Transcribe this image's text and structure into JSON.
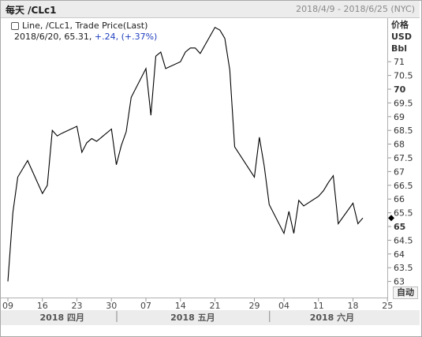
{
  "header": {
    "title": "每天 /CLc1",
    "date_range": "2018/4/9 - 2018/6/25 (NYC)"
  },
  "legend": {
    "line1": "Line, /CLc1, Trade Price(Last)",
    "date_value": "2018/6/20, 65.31, ",
    "change": "+.24, (+.37%)"
  },
  "yaxis": {
    "header": [
      "价格",
      "USD",
      "Bbl"
    ],
    "labels": [
      "71",
      "70.5",
      "70",
      "69.5",
      "69",
      "68.5",
      "68",
      "67.5",
      "67",
      "66.5",
      "66",
      "65.5",
      "65",
      "64.5",
      "64",
      "63.5",
      "63"
    ],
    "bold_labels": [
      "70",
      "65"
    ],
    "auto_button": "自动"
  },
  "xaxis": {
    "tick_labels": [
      "09",
      "16",
      "23",
      "30",
      "07",
      "14",
      "21",
      "29",
      "04",
      "11",
      "18",
      "25"
    ],
    "month_labels": [
      "2018 四月",
      "2018 五月",
      "2018 六月"
    ]
  },
  "chart_data": {
    "type": "line",
    "series": [
      {
        "name": "/CLc1",
        "x": [
          "2018-04-09",
          "2018-04-10",
          "2018-04-11",
          "2018-04-12",
          "2018-04-13",
          "2018-04-16",
          "2018-04-17",
          "2018-04-18",
          "2018-04-19",
          "2018-04-20",
          "2018-04-23",
          "2018-04-24",
          "2018-04-25",
          "2018-04-26",
          "2018-04-27",
          "2018-04-30",
          "2018-05-01",
          "2018-05-02",
          "2018-05-03",
          "2018-05-04",
          "2018-05-07",
          "2018-05-08",
          "2018-05-09",
          "2018-05-10",
          "2018-05-11",
          "2018-05-14",
          "2018-05-15",
          "2018-05-16",
          "2018-05-17",
          "2018-05-18",
          "2018-05-21",
          "2018-05-22",
          "2018-05-23",
          "2018-05-24",
          "2018-05-25",
          "2018-05-29",
          "2018-05-30",
          "2018-05-31",
          "2018-06-01",
          "2018-06-04",
          "2018-06-05",
          "2018-06-06",
          "2018-06-07",
          "2018-06-08",
          "2018-06-11",
          "2018-06-12",
          "2018-06-13",
          "2018-06-14",
          "2018-06-15",
          "2018-06-18",
          "2018-06-19",
          "2018-06-20"
        ],
        "values": [
          63.0,
          65.5,
          66.8,
          67.1,
          67.4,
          66.2,
          66.5,
          68.5,
          68.3,
          68.4,
          68.65,
          67.7,
          68.05,
          68.2,
          68.1,
          68.55,
          67.25,
          67.95,
          68.45,
          69.7,
          70.75,
          69.05,
          71.2,
          71.35,
          70.75,
          71.0,
          71.35,
          71.5,
          71.5,
          71.3,
          72.25,
          72.15,
          71.85,
          70.7,
          67.9,
          66.8,
          68.25,
          67.2,
          65.8,
          64.75,
          65.55,
          64.75,
          65.95,
          65.75,
          66.1,
          66.3,
          66.6,
          66.85,
          65.1,
          65.85,
          65.1,
          65.31
        ]
      }
    ],
    "ylim": [
      62.75,
      72.4
    ],
    "current_value": 65.31,
    "grid": false,
    "legend_position": "top-left"
  }
}
